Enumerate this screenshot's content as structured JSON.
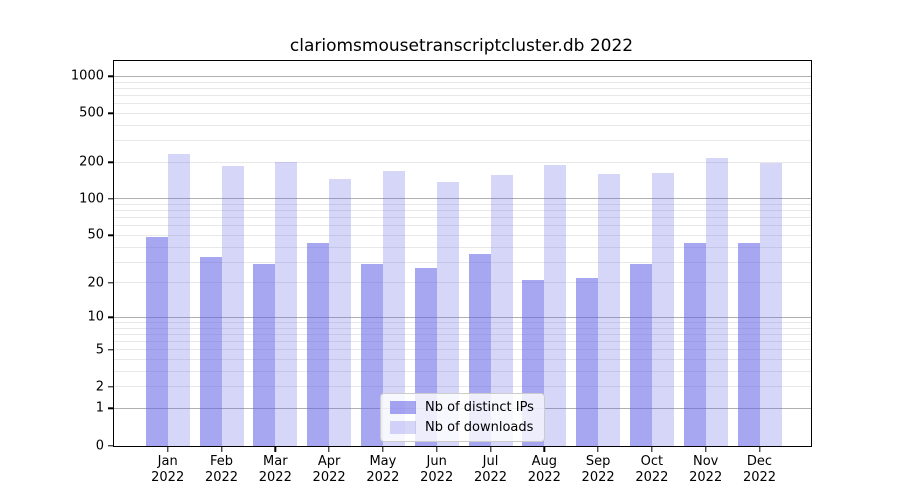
{
  "title": "clariomsmousetranscriptcluster.db 2022",
  "chart_data": {
    "type": "bar",
    "title": "clariomsmousetranscriptcluster.db 2022",
    "y_scale": "log10(1+y)",
    "categories": [
      "Jan",
      "Feb",
      "Mar",
      "Apr",
      "May",
      "Jun",
      "Jul",
      "Aug",
      "Sep",
      "Oct",
      "Nov",
      "Dec"
    ],
    "category_year": "2022",
    "series": [
      {
        "name": "Nb of distinct IPs",
        "color": "rgba(92,92,230,0.55)",
        "color_hex_over_white": "#a5a5f0",
        "values": [
          49,
          33,
          29,
          43,
          29,
          27,
          35,
          21,
          22,
          29,
          43,
          43
        ]
      },
      {
        "name": "Nb of downloads",
        "color": "rgba(92,92,230,0.25)",
        "color_hex_over_white": "#d8d8f7",
        "values": [
          235,
          187,
          200,
          147,
          170,
          138,
          156,
          191,
          159,
          163,
          218,
          198
        ]
      }
    ],
    "yticks": [
      0,
      1,
      2,
      5,
      10,
      20,
      50,
      100,
      200,
      500,
      1000
    ],
    "ylim": [
      0,
      1350
    ],
    "grid": {
      "major": [
        1,
        10,
        100,
        1000
      ],
      "minor": [
        2,
        3,
        4,
        5,
        6,
        7,
        8,
        9,
        20,
        30,
        40,
        50,
        60,
        70,
        80,
        90,
        200,
        300,
        400,
        500,
        600,
        700,
        800,
        900
      ]
    },
    "legend_position": "lower center"
  },
  "legend": {
    "items": [
      {
        "label": "Nb of distinct IPs"
      },
      {
        "label": "Nb of downloads"
      }
    ]
  },
  "colors": {
    "grid_major": "#b0b0b0",
    "grid_minor": "#e8e8e8",
    "axis": "#000000",
    "legend_border": "#cccccc",
    "legend_bg": "rgba(255,255,255,0.8)"
  }
}
